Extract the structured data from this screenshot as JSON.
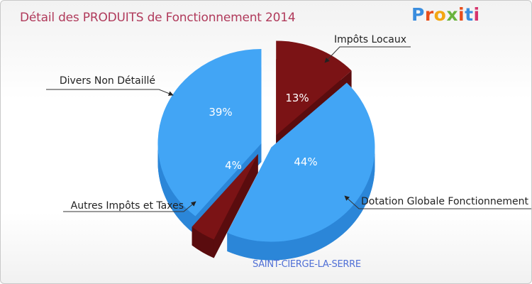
{
  "title": "Détail des PRODUITS de Fonctionnement 2014",
  "brand": {
    "text": "Proxiti",
    "colors": [
      "#3a8dde",
      "#e84e1b",
      "#f3a712",
      "#6ab43e",
      "#e84e1b",
      "#3a8dde",
      "#d6336c"
    ]
  },
  "subtitle": "SAINT-CIERGE-LA-SERRE",
  "chart_data": {
    "type": "pie",
    "style": "3d exploded",
    "title": "Détail des PRODUITS de Fonctionnement 2014",
    "slices": [
      {
        "label": "Impôts Locaux",
        "value": 13,
        "pct_label": "13%",
        "color": "#7b1315",
        "side_color": "#5a0c0e"
      },
      {
        "label": "Dotation Globale Fonctionnement",
        "value": 44,
        "pct_label": "44%",
        "color": "#42a5f5",
        "side_color": "#2b86d8"
      },
      {
        "label": "Autres Impôts et Taxes",
        "value": 4,
        "pct_label": "4%",
        "color": "#7b1315",
        "side_color": "#5a0c0e"
      },
      {
        "label": "Divers Non Détaillé",
        "value": 39,
        "pct_label": "39%",
        "color": "#42a5f5",
        "side_color": "#2b86d8"
      }
    ]
  }
}
